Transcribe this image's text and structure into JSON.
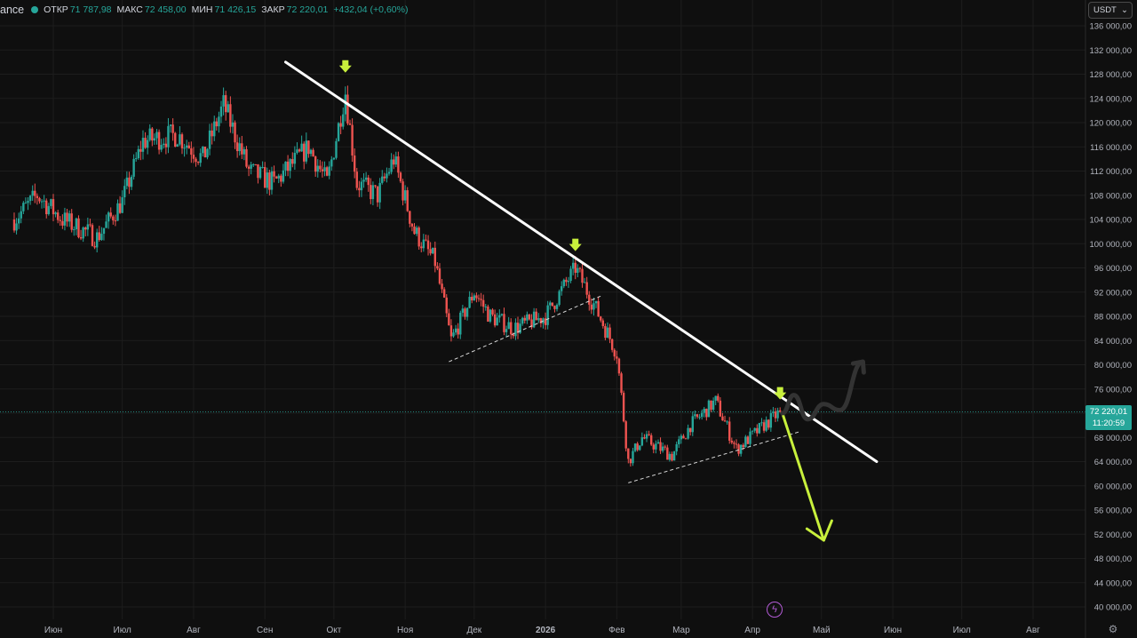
{
  "header": {
    "source": "ance",
    "open_label": "ОТКР",
    "open": "71 787,98",
    "high_label": "МАКС",
    "high": "72 458,00",
    "low_label": "МИН",
    "low": "71 426,15",
    "close_label": "ЗАКР",
    "close": "72 220,01",
    "change": "+432,04 (+0,60%)"
  },
  "currency": {
    "label": "USDT",
    "icon": "chevron-down-icon"
  },
  "price_tag": {
    "price": "72 220,01",
    "countdown": "11:20:59"
  },
  "icons": {
    "events": "lightning-icon",
    "settings": "gear-icon"
  },
  "colors": {
    "up": "#26a69a",
    "down": "#ef5350",
    "trendline": "#ffffff",
    "arrow_marker": "#c8f03c",
    "projection_down": "#c8f03c",
    "projection_up": "#333333"
  },
  "chart_data": {
    "type": "candlestick",
    "title": "",
    "y_ticks": [
      "136 000,00",
      "132 000,00",
      "128 000,00",
      "124 000,00",
      "120 000,00",
      "116 000,00",
      "112 000,00",
      "108 000,00",
      "104 000,00",
      "100 000,00",
      "96 000,00",
      "92 000,00",
      "88 000,00",
      "84 000,00",
      "80 000,00",
      "76 000,00",
      "72 000,00",
      "68 000,00",
      "64 000,00",
      "60 000,00",
      "56 000,00",
      "52 000,00",
      "48 000,00",
      "44 000,00",
      "40 000,00"
    ],
    "y_tick_values": [
      136000,
      132000,
      128000,
      124000,
      120000,
      116000,
      112000,
      108000,
      104000,
      100000,
      96000,
      92000,
      88000,
      84000,
      80000,
      76000,
      72000,
      68000,
      64000,
      60000,
      56000,
      52000,
      48000,
      44000,
      40000
    ],
    "x_ticks": [
      "Июн",
      "Июл",
      "Авг",
      "Сен",
      "Окт",
      "Ноя",
      "Дек",
      "2026",
      "Фев",
      "Мар",
      "Апр",
      "Май",
      "Июн",
      "Июл",
      "Авг"
    ],
    "x_tick_dates": [
      "2025-06-01",
      "2025-07-01",
      "2025-08-01",
      "2025-09-01",
      "2025-10-01",
      "2025-11-01",
      "2025-12-01",
      "2026-01-01",
      "2026-02-01",
      "2026-03-01",
      "2026-04-01",
      "2026-05-01",
      "2026-06-01",
      "2026-07-01",
      "2026-08-01"
    ],
    "ylim": [
      38000,
      138000
    ],
    "grid": true,
    "last_price": 72220.01,
    "close_path": [
      {
        "date": "2025-05-15",
        "price": 104000
      },
      {
        "date": "2025-05-25",
        "price": 108000
      },
      {
        "date": "2025-06-05",
        "price": 104000
      },
      {
        "date": "2025-06-20",
        "price": 101000
      },
      {
        "date": "2025-07-01",
        "price": 107000
      },
      {
        "date": "2025-07-10",
        "price": 117000
      },
      {
        "date": "2025-07-25",
        "price": 118000
      },
      {
        "date": "2025-08-05",
        "price": 114000
      },
      {
        "date": "2025-08-14",
        "price": 123000
      },
      {
        "date": "2025-08-25",
        "price": 112000
      },
      {
        "date": "2025-09-05",
        "price": 110000
      },
      {
        "date": "2025-09-20",
        "price": 116000
      },
      {
        "date": "2025-09-28",
        "price": 110000
      },
      {
        "date": "2025-10-06",
        "price": 125000
      },
      {
        "date": "2025-10-11",
        "price": 110000
      },
      {
        "date": "2025-10-20",
        "price": 108000
      },
      {
        "date": "2025-10-27",
        "price": 114000
      },
      {
        "date": "2025-11-05",
        "price": 102000
      },
      {
        "date": "2025-11-14",
        "price": 97000
      },
      {
        "date": "2025-11-21",
        "price": 84000
      },
      {
        "date": "2025-12-01",
        "price": 92000
      },
      {
        "date": "2025-12-08",
        "price": 88000
      },
      {
        "date": "2025-12-18",
        "price": 86000
      },
      {
        "date": "2026-01-01",
        "price": 88000
      },
      {
        "date": "2026-01-14",
        "price": 96000
      },
      {
        "date": "2026-01-22",
        "price": 90000
      },
      {
        "date": "2026-02-01",
        "price": 82000
      },
      {
        "date": "2026-02-06",
        "price": 64000
      },
      {
        "date": "2026-02-12",
        "price": 68000
      },
      {
        "date": "2026-02-25",
        "price": 65000
      },
      {
        "date": "2026-03-05",
        "price": 70000
      },
      {
        "date": "2026-03-16",
        "price": 74000
      },
      {
        "date": "2026-03-25",
        "price": 66000
      },
      {
        "date": "2026-04-06",
        "price": 70000
      },
      {
        "date": "2026-04-13",
        "price": 72220
      }
    ],
    "trendline": [
      {
        "date": "2025-09-10",
        "price": 130000
      },
      {
        "date": "2026-05-25",
        "price": 64000
      }
    ],
    "support_lines": [
      [
        {
          "date": "2025-11-20",
          "price": 80500
        },
        {
          "date": "2026-01-26",
          "price": 91500
        }
      ],
      [
        {
          "date": "2026-02-06",
          "price": 60500
        },
        {
          "date": "2026-04-22",
          "price": 69000
        }
      ]
    ],
    "marker_arrows": [
      {
        "date": "2025-10-06",
        "price": 129000
      },
      {
        "date": "2026-01-14",
        "price": 99500
      },
      {
        "date": "2026-04-13",
        "price": 75000
      }
    ],
    "projection_down": [
      {
        "date": "2026-04-14",
        "price": 72000
      },
      {
        "date": "2026-05-02",
        "price": 51000
      }
    ],
    "projection_up": [
      {
        "date": "2026-04-14",
        "price": 72000
      },
      {
        "date": "2026-04-19",
        "price": 75000
      },
      {
        "date": "2026-04-25",
        "price": 71000
      },
      {
        "date": "2026-05-02",
        "price": 73500
      },
      {
        "date": "2026-05-09",
        "price": 72500
      },
      {
        "date": "2026-05-19",
        "price": 80500
      }
    ]
  }
}
